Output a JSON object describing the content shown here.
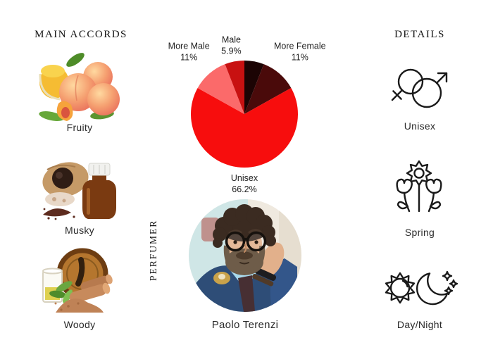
{
  "page": {
    "background": "#ffffff",
    "text_color": "#2a2a2a"
  },
  "main_accords": {
    "heading": "MAIN ACCORDS",
    "items": [
      {
        "label": "Fruity",
        "icon": "peaches-image"
      },
      {
        "label": "Musky",
        "icon": "musk-bottle-image"
      },
      {
        "label": "Woody",
        "icon": "sandalwood-image"
      }
    ]
  },
  "perfumer": {
    "heading": "PERFUMER",
    "name": "Paolo Terenzi",
    "photo": "paolo-terenzi-portrait"
  },
  "details": {
    "heading": "DETAILS",
    "items": [
      {
        "label": "Unisex",
        "icon": "unisex-gender-icon"
      },
      {
        "label": "Spring",
        "icon": "spring-flowers-icon"
      },
      {
        "label": "Day/Night",
        "icon": "sun-moon-icon"
      }
    ]
  },
  "chart_data": {
    "type": "pie",
    "title": "",
    "start_angle_deg": 0,
    "direction": "clockwise",
    "label_color": "#1e1e1e",
    "slices": [
      {
        "name": "Female",
        "value": 5.9,
        "color": "#1c0404",
        "label_visible": false,
        "label": "",
        "pct_label": "",
        "label_distance": 0
      },
      {
        "name": "More Female",
        "value": 11,
        "color": "#4a0a0a",
        "label_visible": true,
        "label": "More Female",
        "pct_label": "11%",
        "label_distance": 120
      },
      {
        "name": "Unisex",
        "value": 66.2,
        "color": "#f70d0d",
        "label_visible": true,
        "label": "Unisex",
        "pct_label": "66.2%",
        "label_distance": 97
      },
      {
        "name": "More Male",
        "value": 11,
        "color": "#fb6a6a",
        "label_visible": true,
        "label": "More Male",
        "pct_label": "11%",
        "label_distance": 120
      },
      {
        "name": "Male",
        "value": 5.9,
        "color": "#c81111",
        "label_visible": true,
        "label": "Male",
        "pct_label": "5.9%",
        "label_distance": 101
      }
    ]
  }
}
